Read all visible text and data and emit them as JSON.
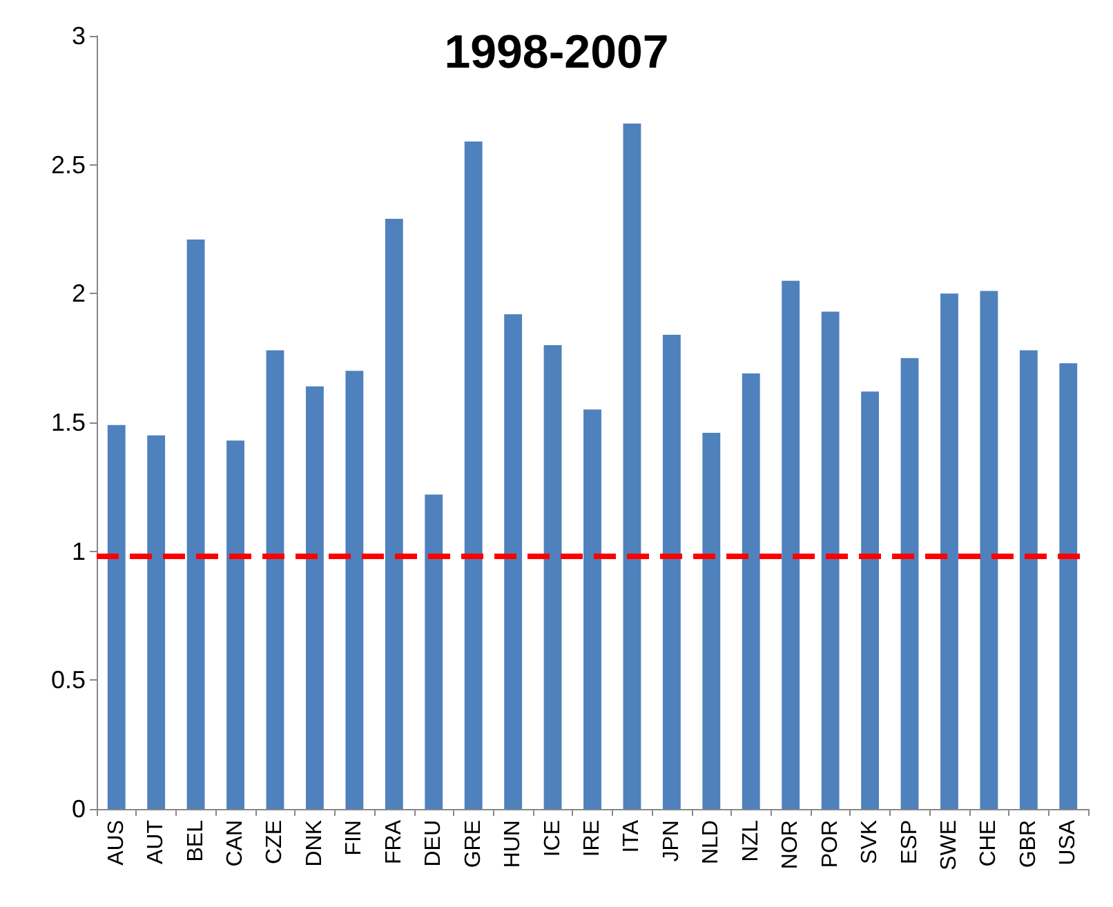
{
  "chart_data": {
    "type": "bar",
    "title": "1998-2007",
    "categories": [
      "AUS",
      "AUT",
      "BEL",
      "CAN",
      "CZE",
      "DNK",
      "FIN",
      "FRA",
      "DEU",
      "GRE",
      "HUN",
      "ICE",
      "IRE",
      "ITA",
      "JPN",
      "NLD",
      "NZL",
      "NOR",
      "POR",
      "SVK",
      "ESP",
      "SWE",
      "CHE",
      "GBR",
      "USA"
    ],
    "values": [
      1.49,
      1.45,
      2.21,
      1.43,
      1.78,
      1.64,
      1.7,
      2.29,
      1.22,
      2.59,
      1.92,
      1.8,
      1.55,
      2.66,
      1.84,
      1.46,
      1.69,
      2.05,
      1.93,
      1.62,
      1.75,
      2.0,
      2.01,
      1.78,
      1.73
    ],
    "color": "#4f81bd",
    "ylim": [
      0,
      3
    ],
    "yticks": [
      0,
      0.5,
      1,
      1.5,
      2,
      2.5,
      3
    ],
    "grid": false,
    "ref_lines": [
      {
        "axis": "y",
        "value": 0.98,
        "color": "#ff0000",
        "line_style": "dashed"
      }
    ]
  }
}
